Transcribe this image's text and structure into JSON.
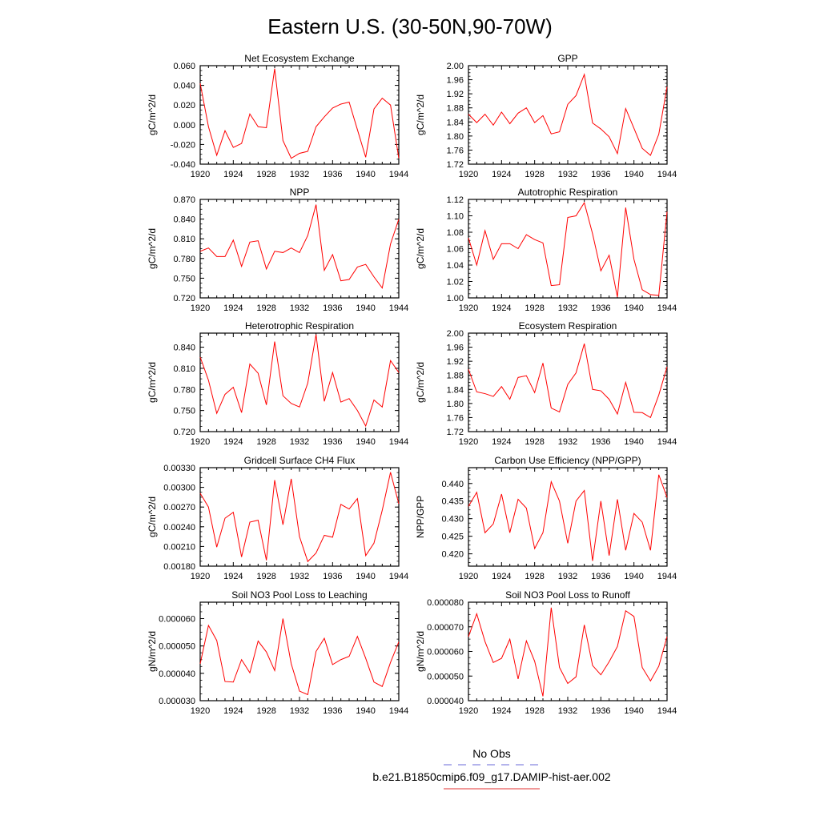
{
  "figure": {
    "title": "Eastern U.S. (30-50N,90-70W)",
    "legend": [
      {
        "label": "No Obs",
        "color": "#6a6ad8",
        "dash": true
      },
      {
        "label": "b.e21.B1850cmip6.f09_g17.DAMIP-hist-aer.002",
        "color": "#e03030",
        "dash": false
      }
    ],
    "line_color": "#ff0000"
  },
  "chart_data": [
    {
      "type": "line",
      "title": "Net Ecosystem Exchange",
      "xlabel": "",
      "ylabel": "gC/m^2/d",
      "xlim": [
        1920,
        1944
      ],
      "xticks": [
        "1920",
        "1924",
        "1928",
        "1932",
        "1936",
        "1940",
        "1944"
      ],
      "ylim": [
        -0.04,
        0.06
      ],
      "yticks": [
        "-0.040",
        "-0.020",
        "0.000",
        "0.020",
        "0.040",
        "0.060"
      ],
      "x": [
        1920,
        1921,
        1922,
        1923,
        1924,
        1925,
        1926,
        1927,
        1928,
        1929,
        1930,
        1931,
        1932,
        1933,
        1934,
        1935,
        1936,
        1937,
        1938,
        1939,
        1940,
        1941,
        1942,
        1943,
        1944
      ],
      "series": [
        {
          "values": [
            0.042,
            -0.002,
            -0.031,
            -0.006,
            -0.023,
            -0.019,
            0.011,
            -0.002,
            -0.003,
            0.057,
            -0.016,
            -0.034,
            -0.029,
            -0.027,
            -0.002,
            0.008,
            0.017,
            0.021,
            0.023,
            -0.005,
            -0.033,
            0.016,
            0.027,
            0.02,
            -0.034
          ]
        }
      ]
    },
    {
      "type": "line",
      "title": "GPP",
      "xlabel": "",
      "ylabel": "gC/m^2/d",
      "xlim": [
        1920,
        1944
      ],
      "xticks": [
        "1920",
        "1924",
        "1928",
        "1932",
        "1936",
        "1940",
        "1944"
      ],
      "ylim": [
        1.72,
        2.0
      ],
      "yticks": [
        "1.72",
        "1.76",
        "1.80",
        "1.84",
        "1.88",
        "1.92",
        "1.96",
        "2.00"
      ],
      "x": [
        1920,
        1921,
        1922,
        1923,
        1924,
        1925,
        1926,
        1927,
        1928,
        1929,
        1930,
        1931,
        1932,
        1933,
        1934,
        1935,
        1936,
        1937,
        1938,
        1939,
        1940,
        1941,
        1942,
        1943,
        1944
      ],
      "series": [
        {
          "values": [
            1.862,
            1.838,
            1.862,
            1.831,
            1.868,
            1.835,
            1.865,
            1.88,
            1.838,
            1.858,
            1.806,
            1.812,
            1.89,
            1.915,
            1.975,
            1.837,
            1.82,
            1.798,
            1.75,
            1.878,
            1.822,
            1.765,
            1.745,
            1.805,
            1.94
          ]
        }
      ]
    },
    {
      "type": "line",
      "title": "NPP",
      "xlabel": "",
      "ylabel": "gC/m^2/d",
      "xlim": [
        1920,
        1944
      ],
      "xticks": [
        "1920",
        "1924",
        "1928",
        "1932",
        "1936",
        "1940",
        "1944"
      ],
      "ylim": [
        0.72,
        0.87
      ],
      "yticks": [
        "0.720",
        "0.750",
        "0.780",
        "0.810",
        "0.840",
        "0.870"
      ],
      "x": [
        1920,
        1921,
        1922,
        1923,
        1924,
        1925,
        1926,
        1927,
        1928,
        1929,
        1930,
        1931,
        1932,
        1933,
        1934,
        1935,
        1936,
        1937,
        1938,
        1939,
        1940,
        1941,
        1942,
        1943,
        1944
      ],
      "series": [
        {
          "values": [
            0.791,
            0.796,
            0.783,
            0.783,
            0.808,
            0.768,
            0.805,
            0.807,
            0.764,
            0.791,
            0.789,
            0.796,
            0.789,
            0.815,
            0.862,
            0.762,
            0.786,
            0.746,
            0.748,
            0.767,
            0.771,
            0.752,
            0.735,
            0.802,
            0.84
          ]
        }
      ]
    },
    {
      "type": "line",
      "title": "Autotrophic Respiration",
      "xlabel": "",
      "ylabel": "gC/m^2/d",
      "xlim": [
        1920,
        1944
      ],
      "xticks": [
        "1920",
        "1924",
        "1928",
        "1932",
        "1936",
        "1940",
        "1944"
      ],
      "ylim": [
        1.0,
        1.12
      ],
      "yticks": [
        "1.00",
        "1.02",
        "1.04",
        "1.06",
        "1.08",
        "1.10",
        "1.12"
      ],
      "x": [
        1920,
        1921,
        1922,
        1923,
        1924,
        1925,
        1926,
        1927,
        1928,
        1929,
        1930,
        1931,
        1932,
        1933,
        1934,
        1935,
        1936,
        1937,
        1938,
        1939,
        1940,
        1941,
        1942,
        1943,
        1944
      ],
      "series": [
        {
          "values": [
            1.073,
            1.04,
            1.082,
            1.047,
            1.066,
            1.066,
            1.06,
            1.077,
            1.071,
            1.067,
            1.015,
            1.016,
            1.098,
            1.1,
            1.116,
            1.078,
            1.033,
            1.052,
            1.001,
            1.11,
            1.047,
            1.01,
            1.004,
            1.003,
            1.105
          ]
        }
      ]
    },
    {
      "type": "line",
      "title": "Heterotrophic Respiration",
      "xlabel": "",
      "ylabel": "gC/m^2/d",
      "xlim": [
        1920,
        1944
      ],
      "xticks": [
        "1920",
        "1924",
        "1928",
        "1932",
        "1936",
        "1940",
        "1944"
      ],
      "ylim": [
        0.72,
        0.86
      ],
      "yticks": [
        "0.720",
        "0.750",
        "0.780",
        "0.810",
        "0.840"
      ],
      "x": [
        1920,
        1921,
        1922,
        1923,
        1924,
        1925,
        1926,
        1927,
        1928,
        1929,
        1930,
        1931,
        1932,
        1933,
        1934,
        1935,
        1936,
        1937,
        1938,
        1939,
        1940,
        1941,
        1942,
        1943,
        1944
      ],
      "series": [
        {
          "values": [
            0.826,
            0.793,
            0.746,
            0.773,
            0.783,
            0.747,
            0.816,
            0.803,
            0.758,
            0.848,
            0.771,
            0.76,
            0.755,
            0.789,
            0.858,
            0.763,
            0.804,
            0.762,
            0.767,
            0.75,
            0.728,
            0.765,
            0.755,
            0.821,
            0.804
          ]
        }
      ]
    },
    {
      "type": "line",
      "title": "Ecosystem Respiration",
      "xlabel": "",
      "ylabel": "gC/m^2/d",
      "xlim": [
        1920,
        1944
      ],
      "xticks": [
        "1920",
        "1924",
        "1928",
        "1932",
        "1936",
        "1940",
        "1944"
      ],
      "ylim": [
        1.72,
        2.0
      ],
      "yticks": [
        "1.72",
        "1.76",
        "1.80",
        "1.84",
        "1.88",
        "1.92",
        "1.96",
        "2.00"
      ],
      "x": [
        1920,
        1921,
        1922,
        1923,
        1924,
        1925,
        1926,
        1927,
        1928,
        1929,
        1930,
        1931,
        1932,
        1933,
        1934,
        1935,
        1936,
        1937,
        1938,
        1939,
        1940,
        1941,
        1942,
        1943,
        1944
      ],
      "series": [
        {
          "values": [
            1.897,
            1.833,
            1.828,
            1.82,
            1.848,
            1.812,
            1.874,
            1.879,
            1.831,
            1.915,
            1.787,
            1.776,
            1.854,
            1.887,
            1.97,
            1.84,
            1.836,
            1.812,
            1.77,
            1.86,
            1.775,
            1.774,
            1.76,
            1.824,
            1.904
          ]
        }
      ]
    },
    {
      "type": "line",
      "title": "Gridcell Surface CH4 Flux",
      "xlabel": "",
      "ylabel": "gC/m^2/d",
      "xlim": [
        1920,
        1944
      ],
      "xticks": [
        "1920",
        "1924",
        "1928",
        "1932",
        "1936",
        "1940",
        "1944"
      ],
      "ylim": [
        0.0018,
        0.0033
      ],
      "yticks": [
        "0.00180",
        "0.00210",
        "0.00240",
        "0.00270",
        "0.00300",
        "0.00330"
      ],
      "x": [
        1920,
        1921,
        1922,
        1923,
        1924,
        1925,
        1926,
        1927,
        1928,
        1929,
        1930,
        1931,
        1932,
        1933,
        1934,
        1935,
        1936,
        1937,
        1938,
        1939,
        1940,
        1941,
        1942,
        1943,
        1944
      ],
      "series": [
        {
          "values": [
            0.00291,
            0.0027,
            0.00209,
            0.00253,
            0.00262,
            0.00194,
            0.00247,
            0.0025,
            0.00189,
            0.00311,
            0.00243,
            0.00313,
            0.00225,
            0.00187,
            0.002,
            0.00227,
            0.00224,
            0.00274,
            0.00267,
            0.00283,
            0.00196,
            0.00215,
            0.00265,
            0.00323,
            0.00275
          ]
        }
      ]
    },
    {
      "type": "line",
      "title": "Carbon Use Efficiency (NPP/GPP)",
      "xlabel": "",
      "ylabel": "NPP/GPP",
      "xlim": [
        1920,
        1944
      ],
      "xticks": [
        "1920",
        "1924",
        "1928",
        "1932",
        "1936",
        "1940",
        "1944"
      ],
      "ylim": [
        0.4165,
        0.4445
      ],
      "yticks": [
        "0.420",
        "0.425",
        "0.430",
        "0.435",
        "0.440"
      ],
      "x": [
        1920,
        1921,
        1922,
        1923,
        1924,
        1925,
        1926,
        1927,
        1928,
        1929,
        1930,
        1931,
        1932,
        1933,
        1934,
        1935,
        1936,
        1937,
        1938,
        1939,
        1940,
        1941,
        1942,
        1943,
        1944
      ],
      "series": [
        {
          "values": [
            0.4335,
            0.4375,
            0.426,
            0.4285,
            0.437,
            0.426,
            0.4355,
            0.433,
            0.4215,
            0.426,
            0.4405,
            0.435,
            0.423,
            0.435,
            0.438,
            0.418,
            0.435,
            0.4195,
            0.4355,
            0.421,
            0.4315,
            0.429,
            0.421,
            0.4425,
            0.436
          ]
        }
      ]
    },
    {
      "type": "line",
      "title": "Soil NO3 Pool Loss to Leaching",
      "xlabel": "",
      "ylabel": "gN/m^2/d",
      "xlim": [
        1920,
        1944
      ],
      "xticks": [
        "1920",
        "1924",
        "1928",
        "1932",
        "1936",
        "1940",
        "1944"
      ],
      "ylim": [
        3e-05,
        6.6e-05
      ],
      "yticks": [
        "0.000030",
        "0.000040",
        "0.000050",
        "0.000060"
      ],
      "x": [
        1920,
        1921,
        1922,
        1923,
        1924,
        1925,
        1926,
        1927,
        1928,
        1929,
        1930,
        1931,
        1932,
        1933,
        1934,
        1935,
        1936,
        1937,
        1938,
        1939,
        1940,
        1941,
        1942,
        1943,
        1944
      ],
      "series": [
        {
          "values": [
            4.35e-05,
            5.75e-05,
            5.2e-05,
            3.7e-05,
            3.68e-05,
            4.5e-05,
            4.02e-05,
            5.18e-05,
            4.78e-05,
            4.1e-05,
            6e-05,
            4.35e-05,
            3.35e-05,
            3.22e-05,
            4.8e-05,
            5.28e-05,
            4.32e-05,
            4.5e-05,
            4.62e-05,
            5.35e-05,
            4.55e-05,
            3.68e-05,
            3.52e-05,
            4.4e-05,
            5.15e-05
          ]
        }
      ]
    },
    {
      "type": "line",
      "title": "Soil NO3 Pool Loss to Runoff",
      "xlabel": "",
      "ylabel": "gN/m^2/d",
      "xlim": [
        1920,
        1944
      ],
      "xticks": [
        "1920",
        "1924",
        "1928",
        "1932",
        "1936",
        "1940",
        "1944"
      ],
      "ylim": [
        4e-05,
        8e-05
      ],
      "yticks": [
        "0.000040",
        "0.000050",
        "0.000060",
        "0.000070",
        "0.000080"
      ],
      "x": [
        1920,
        1921,
        1922,
        1923,
        1924,
        1925,
        1926,
        1927,
        1928,
        1929,
        1930,
        1931,
        1932,
        1933,
        1934,
        1935,
        1936,
        1937,
        1938,
        1939,
        1940,
        1941,
        1942,
        1943,
        1944
      ],
      "series": [
        {
          "values": [
            6.6e-05,
            7.53e-05,
            6.4e-05,
            5.55e-05,
            5.72e-05,
            6.5e-05,
            4.88e-05,
            6.43e-05,
            5.6e-05,
            4.18e-05,
            7.78e-05,
            5.35e-05,
            4.7e-05,
            4.97e-05,
            7.08e-05,
            5.43e-05,
            5.05e-05,
            5.58e-05,
            6.2e-05,
            7.65e-05,
            7.42e-05,
            5.35e-05,
            4.8e-05,
            5.4e-05,
            6.6e-05
          ]
        }
      ]
    }
  ]
}
